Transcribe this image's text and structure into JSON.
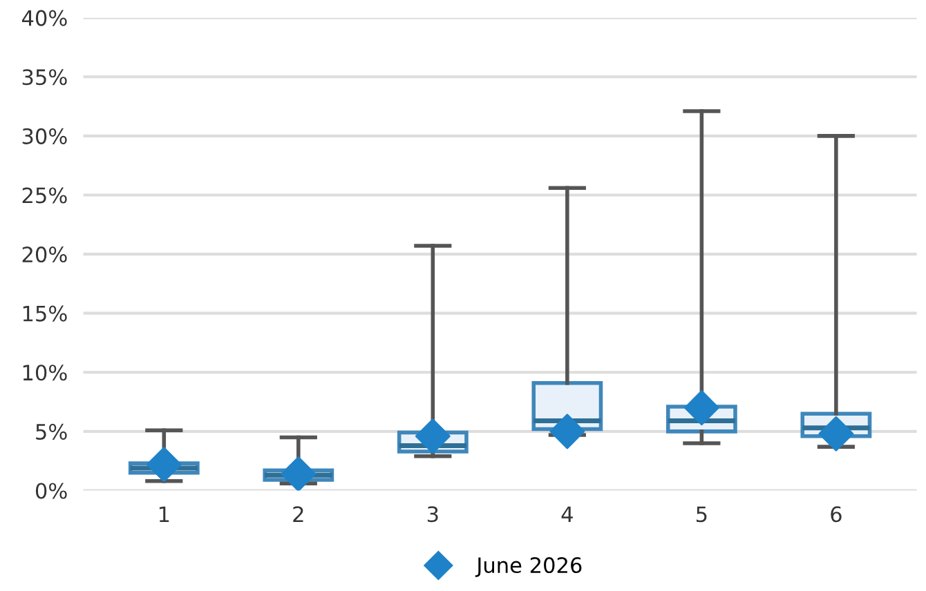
{
  "chart_data": {
    "type": "box",
    "categories": [
      "1",
      "2",
      "3",
      "4",
      "5",
      "6"
    ],
    "boxes": [
      {
        "low": 0.8,
        "q1": 1.5,
        "median": 1.9,
        "q3": 2.3,
        "high": 5.1
      },
      {
        "low": 0.6,
        "q1": 0.9,
        "median": 1.3,
        "q3": 1.7,
        "high": 4.5
      },
      {
        "low": 2.9,
        "q1": 3.3,
        "median": 3.8,
        "q3": 4.9,
        "high": 20.7
      },
      {
        "low": 4.7,
        "q1": 5.2,
        "median": 5.9,
        "q3": 9.1,
        "high": 25.6
      },
      {
        "low": 4.0,
        "q1": 5.0,
        "median": 5.9,
        "q3": 7.1,
        "high": 32.1
      },
      {
        "low": 3.7,
        "q1": 4.6,
        "median": 5.3,
        "q3": 6.5,
        "high": 30.0
      }
    ],
    "series": [
      {
        "name": "June 2026",
        "type": "scatter",
        "color": "#1f82c8",
        "x": [
          "1",
          "2",
          "3",
          "4",
          "5",
          "6"
        ],
        "values": [
          2.2,
          1.4,
          4.6,
          5.0,
          7.0,
          4.8
        ]
      }
    ],
    "ylim": [
      0,
      40
    ],
    "yticks": [
      {
        "value": 0,
        "label": "0%"
      },
      {
        "value": 5,
        "label": "5%"
      },
      {
        "value": 10,
        "label": "10%"
      },
      {
        "value": 15,
        "label": "15%"
      },
      {
        "value": 20,
        "label": "20%"
      },
      {
        "value": 25,
        "label": "25%"
      },
      {
        "value": 30,
        "label": "30%"
      },
      {
        "value": 35,
        "label": "35%"
      },
      {
        "value": 40,
        "label": "40%"
      }
    ],
    "grid": "y",
    "legend": "bottom",
    "marker": "diamond"
  }
}
